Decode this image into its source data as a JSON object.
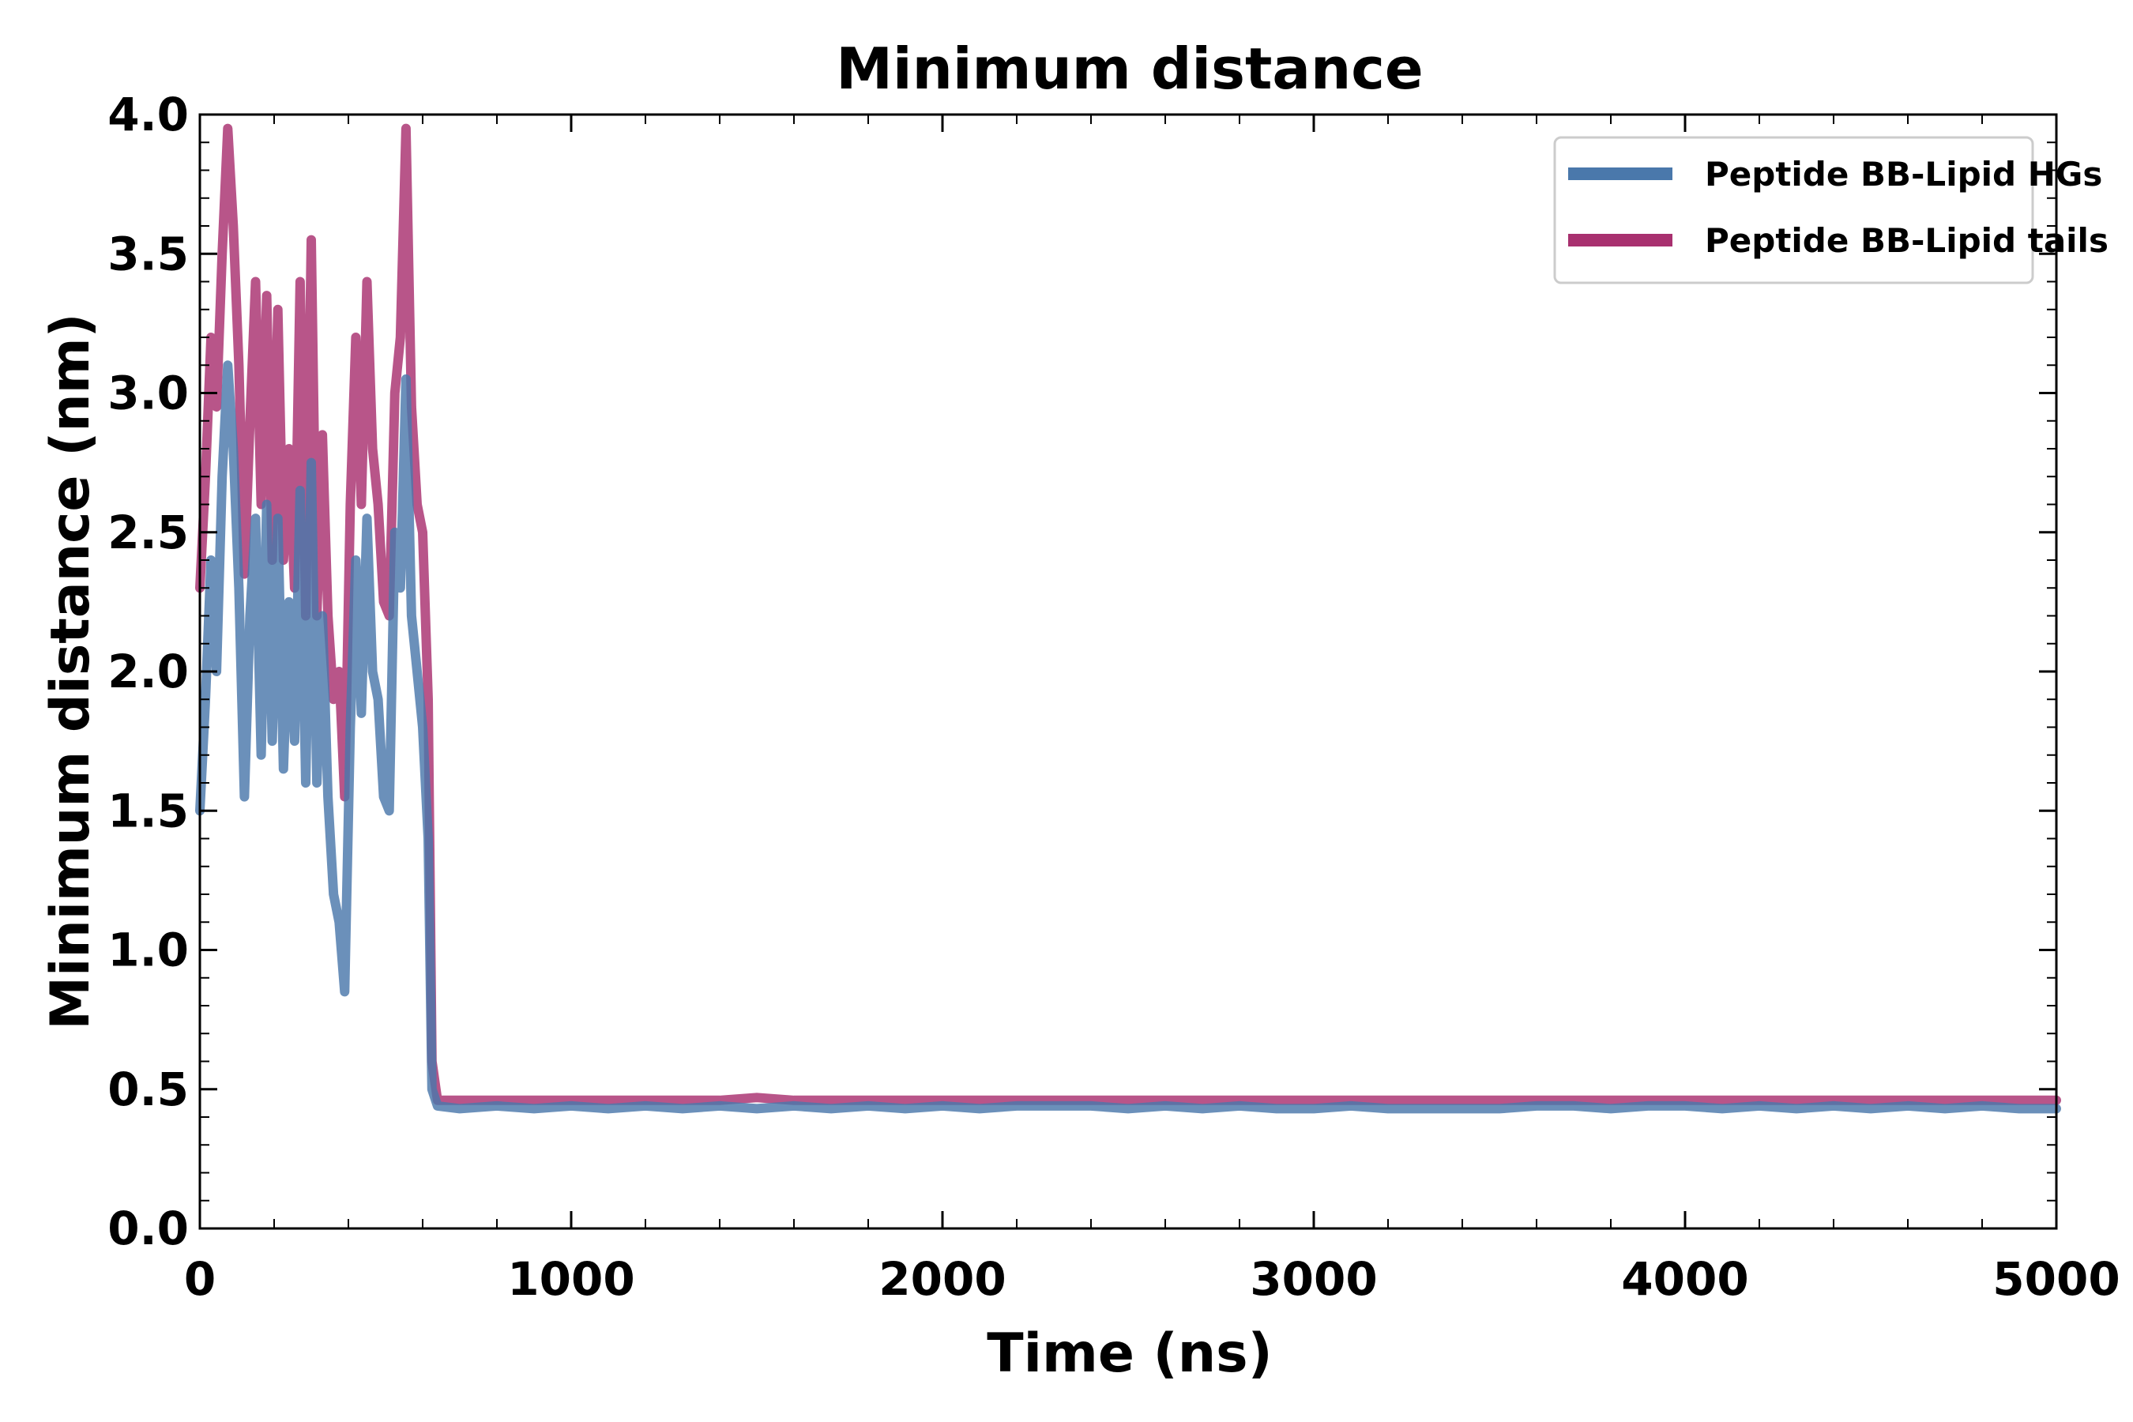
{
  "chart_data": {
    "type": "line",
    "title": "Minimum distance",
    "xlabel": "Time (ns)",
    "ylabel": "Minimum distance (nm)",
    "xlim": [
      0,
      5000
    ],
    "ylim": [
      0.0,
      4.0
    ],
    "x_ticks": [
      "0",
      "1000",
      "2000",
      "3000",
      "4000",
      "5000"
    ],
    "y_ticks": [
      "0.0",
      "0.5",
      "1.0",
      "1.5",
      "2.0",
      "2.5",
      "3.0",
      "3.5",
      "4.0"
    ],
    "grid": false,
    "legend_position": "top-right",
    "series": [
      {
        "name": "Peptide BB-Lipid HGs",
        "color": "#4a78ab",
        "points": [
          [
            0,
            1.5
          ],
          [
            15,
            1.9
          ],
          [
            30,
            2.4
          ],
          [
            45,
            2.0
          ],
          [
            60,
            2.7
          ],
          [
            75,
            3.1
          ],
          [
            90,
            2.8
          ],
          [
            105,
            2.3
          ],
          [
            120,
            1.55
          ],
          [
            135,
            2.2
          ],
          [
            150,
            2.55
          ],
          [
            165,
            1.7
          ],
          [
            180,
            2.6
          ],
          [
            195,
            1.75
          ],
          [
            210,
            2.55
          ],
          [
            225,
            1.65
          ],
          [
            240,
            2.25
          ],
          [
            255,
            1.75
          ],
          [
            270,
            2.65
          ],
          [
            285,
            1.6
          ],
          [
            300,
            2.75
          ],
          [
            315,
            1.6
          ],
          [
            330,
            2.2
          ],
          [
            345,
            1.55
          ],
          [
            360,
            1.2
          ],
          [
            375,
            1.1
          ],
          [
            390,
            0.85
          ],
          [
            405,
            1.8
          ],
          [
            420,
            2.4
          ],
          [
            435,
            1.85
          ],
          [
            450,
            2.55
          ],
          [
            465,
            2.0
          ],
          [
            480,
            1.9
          ],
          [
            495,
            1.55
          ],
          [
            510,
            1.5
          ],
          [
            525,
            2.5
          ],
          [
            540,
            2.3
          ],
          [
            555,
            3.05
          ],
          [
            570,
            2.2
          ],
          [
            585,
            2.0
          ],
          [
            600,
            1.8
          ],
          [
            615,
            1.4
          ],
          [
            625,
            0.5
          ],
          [
            640,
            0.44
          ],
          [
            700,
            0.43
          ],
          [
            800,
            0.44
          ],
          [
            900,
            0.43
          ],
          [
            1000,
            0.44
          ],
          [
            1100,
            0.43
          ],
          [
            1200,
            0.44
          ],
          [
            1300,
            0.43
          ],
          [
            1400,
            0.44
          ],
          [
            1500,
            0.43
          ],
          [
            1600,
            0.44
          ],
          [
            1700,
            0.43
          ],
          [
            1800,
            0.44
          ],
          [
            1900,
            0.43
          ],
          [
            2000,
            0.44
          ],
          [
            2100,
            0.43
          ],
          [
            2200,
            0.44
          ],
          [
            2300,
            0.44
          ],
          [
            2400,
            0.44
          ],
          [
            2500,
            0.43
          ],
          [
            2600,
            0.44
          ],
          [
            2700,
            0.43
          ],
          [
            2800,
            0.44
          ],
          [
            2900,
            0.43
          ],
          [
            3000,
            0.43
          ],
          [
            3100,
            0.44
          ],
          [
            3200,
            0.43
          ],
          [
            3300,
            0.43
          ],
          [
            3400,
            0.43
          ],
          [
            3500,
            0.43
          ],
          [
            3600,
            0.44
          ],
          [
            3700,
            0.44
          ],
          [
            3800,
            0.43
          ],
          [
            3900,
            0.44
          ],
          [
            4000,
            0.44
          ],
          [
            4100,
            0.43
          ],
          [
            4200,
            0.44
          ],
          [
            4300,
            0.43
          ],
          [
            4400,
            0.44
          ],
          [
            4500,
            0.43
          ],
          [
            4600,
            0.44
          ],
          [
            4700,
            0.43
          ],
          [
            4800,
            0.44
          ],
          [
            4900,
            0.43
          ],
          [
            5000,
            0.43
          ]
        ]
      },
      {
        "name": "Peptide BB-Lipid tails",
        "color": "#a8306f",
        "points": [
          [
            0,
            2.3
          ],
          [
            15,
            2.7
          ],
          [
            30,
            3.2
          ],
          [
            45,
            2.95
          ],
          [
            60,
            3.5
          ],
          [
            75,
            3.95
          ],
          [
            90,
            3.6
          ],
          [
            105,
            3.1
          ],
          [
            120,
            2.35
          ],
          [
            135,
            2.9
          ],
          [
            150,
            3.4
          ],
          [
            165,
            2.6
          ],
          [
            180,
            3.35
          ],
          [
            195,
            2.4
          ],
          [
            210,
            3.3
          ],
          [
            225,
            2.4
          ],
          [
            240,
            2.8
          ],
          [
            255,
            2.3
          ],
          [
            270,
            3.4
          ],
          [
            285,
            2.2
          ],
          [
            300,
            3.55
          ],
          [
            315,
            2.2
          ],
          [
            330,
            2.85
          ],
          [
            345,
            2.2
          ],
          [
            360,
            1.9
          ],
          [
            375,
            2.0
          ],
          [
            390,
            1.55
          ],
          [
            405,
            2.6
          ],
          [
            420,
            3.2
          ],
          [
            435,
            2.6
          ],
          [
            450,
            3.4
          ],
          [
            465,
            2.8
          ],
          [
            480,
            2.6
          ],
          [
            495,
            2.25
          ],
          [
            510,
            2.2
          ],
          [
            525,
            3.0
          ],
          [
            540,
            3.2
          ],
          [
            555,
            3.95
          ],
          [
            570,
            2.95
          ],
          [
            585,
            2.6
          ],
          [
            600,
            2.5
          ],
          [
            615,
            1.9
          ],
          [
            625,
            0.6
          ],
          [
            640,
            0.46
          ],
          [
            700,
            0.46
          ],
          [
            800,
            0.46
          ],
          [
            900,
            0.46
          ],
          [
            1000,
            0.46
          ],
          [
            1100,
            0.46
          ],
          [
            1200,
            0.46
          ],
          [
            1300,
            0.46
          ],
          [
            1400,
            0.46
          ],
          [
            1500,
            0.47
          ],
          [
            1600,
            0.46
          ],
          [
            1700,
            0.46
          ],
          [
            1800,
            0.46
          ],
          [
            1900,
            0.46
          ],
          [
            2000,
            0.46
          ],
          [
            2100,
            0.46
          ],
          [
            2200,
            0.46
          ],
          [
            2300,
            0.46
          ],
          [
            2400,
            0.46
          ],
          [
            2500,
            0.46
          ],
          [
            2600,
            0.46
          ],
          [
            2700,
            0.46
          ],
          [
            2800,
            0.46
          ],
          [
            2900,
            0.46
          ],
          [
            3000,
            0.46
          ],
          [
            3100,
            0.46
          ],
          [
            3200,
            0.46
          ],
          [
            3300,
            0.46
          ],
          [
            3400,
            0.46
          ],
          [
            3500,
            0.46
          ],
          [
            3600,
            0.46
          ],
          [
            3700,
            0.46
          ],
          [
            3800,
            0.46
          ],
          [
            3900,
            0.46
          ],
          [
            4000,
            0.46
          ],
          [
            4100,
            0.46
          ],
          [
            4200,
            0.46
          ],
          [
            4300,
            0.46
          ],
          [
            4400,
            0.46
          ],
          [
            4500,
            0.46
          ],
          [
            4600,
            0.46
          ],
          [
            4700,
            0.46
          ],
          [
            4800,
            0.46
          ],
          [
            4900,
            0.46
          ],
          [
            5000,
            0.46
          ]
        ]
      }
    ]
  }
}
